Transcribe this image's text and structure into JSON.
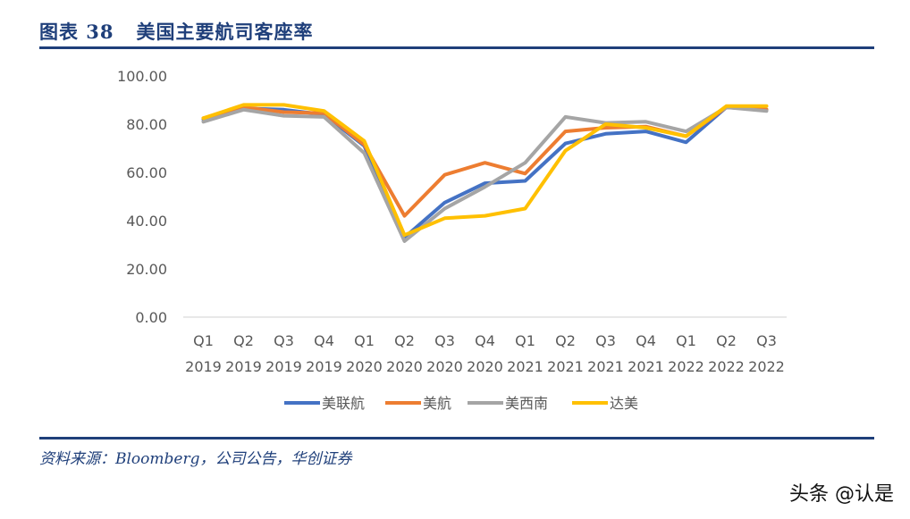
{
  "header": {
    "figure_label": "图表 38",
    "figure_title": "美国主要航司客座率"
  },
  "chart_data": {
    "type": "line",
    "title": "美国主要航司客座率",
    "xlabel": "",
    "ylabel": "",
    "ylim": [
      0,
      100
    ],
    "y_ticks": [
      "0.00",
      "20.00",
      "40.00",
      "60.00",
      "80.00",
      "100.00"
    ],
    "y_tick_values": [
      0,
      20,
      40,
      60,
      80,
      100
    ],
    "categories": [
      {
        "quarter": "Q1",
        "year": "2019"
      },
      {
        "quarter": "Q2",
        "year": "2019"
      },
      {
        "quarter": "Q3",
        "year": "2019"
      },
      {
        "quarter": "Q4",
        "year": "2019"
      },
      {
        "quarter": "Q1",
        "year": "2020"
      },
      {
        "quarter": "Q2",
        "year": "2020"
      },
      {
        "quarter": "Q3",
        "year": "2020"
      },
      {
        "quarter": "Q4",
        "year": "2020"
      },
      {
        "quarter": "Q1",
        "year": "2021"
      },
      {
        "quarter": "Q2",
        "year": "2021"
      },
      {
        "quarter": "Q3",
        "year": "2021"
      },
      {
        "quarter": "Q4",
        "year": "2021"
      },
      {
        "quarter": "Q1",
        "year": "2022"
      },
      {
        "quarter": "Q2",
        "year": "2022"
      },
      {
        "quarter": "Q3",
        "year": "2022"
      }
    ],
    "grid": false,
    "legend_position": "bottom",
    "series": [
      {
        "name": "美联航",
        "color": "#4472c4",
        "values": [
          82,
          86.5,
          86,
          84,
          71,
          33,
          47.5,
          55.5,
          56.5,
          72,
          76,
          77,
          72.5,
          87,
          86
        ]
      },
      {
        "name": "美航",
        "color": "#ed7d31",
        "values": [
          82.5,
          87,
          85,
          84.5,
          71.5,
          42,
          59,
          64,
          59.5,
          77,
          78.5,
          79,
          75,
          87,
          86
        ]
      },
      {
        "name": "美西南",
        "color": "#a5a5a5",
        "values": [
          81,
          86,
          83.5,
          83,
          68,
          31.5,
          45,
          54,
          64,
          83,
          80.5,
          81,
          77,
          87,
          85.5
        ]
      },
      {
        "name": "达美",
        "color": "#ffc000",
        "values": [
          82.5,
          88,
          88,
          85.5,
          73,
          34,
          41,
          42,
          45,
          69,
          80,
          78.5,
          75,
          87.5,
          87.5
        ]
      }
    ]
  },
  "footer": {
    "source": "资料来源：Bloomberg，公司公告，华创证券",
    "watermark": "头条 @认是"
  }
}
